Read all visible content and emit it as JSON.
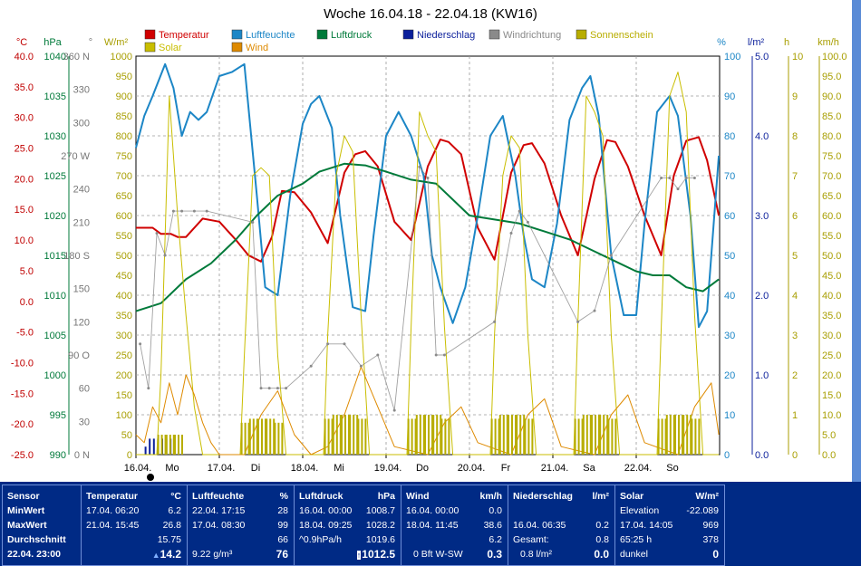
{
  "chart_data": {
    "type": "line",
    "title": "Woche 16.04.18 - 22.04.18 (KW16)",
    "x_range": [
      "16.04. 00:00",
      "22.04. 23:59"
    ],
    "x_ticks": [
      "16.04.",
      "17.04.",
      "18.04.",
      "19.04.",
      "20.04.",
      "21.04.",
      "22.04."
    ],
    "x_day_labels": [
      "Mo",
      "Di",
      "Mi",
      "Do",
      "Fr",
      "Sa",
      "So"
    ],
    "grid": true,
    "legend_position": "top",
    "legend": [
      {
        "name": "Temperatur",
        "color": "#d00000"
      },
      {
        "name": "Luftfeuchte",
        "color": "#1c86c6"
      },
      {
        "name": "Luftdruck",
        "color": "#007a3a"
      },
      {
        "name": "Niederschlag",
        "color": "#0b1f9b"
      },
      {
        "name": "Windrichtung",
        "color": "#8a8a8a"
      },
      {
        "name": "Sonnenschein",
        "color": "#b8ad00"
      },
      {
        "name": "Solar",
        "color": "#c9be00"
      },
      {
        "name": "Wind",
        "color": "#de8a00"
      }
    ],
    "axes": [
      {
        "unit": "°C",
        "color": "#c00000",
        "range": [
          -25,
          40
        ],
        "ticks": [
          "40.0",
          "35.0",
          "30.0",
          "25.0",
          "20.0",
          "15.0",
          "10.0",
          "5.0",
          "0.0",
          "-5.0",
          "-10.0",
          "-15.0",
          "-20.0",
          "-25.0"
        ]
      },
      {
        "unit": "hPa",
        "color": "#007a3a",
        "range": [
          990,
          1040
        ],
        "ticks": [
          "1040",
          "1035",
          "1030",
          "1025",
          "1020",
          "1015",
          "1010",
          "1005",
          "1000",
          "995",
          "990"
        ]
      },
      {
        "unit": "°",
        "color": "#777777",
        "range": [
          0,
          360
        ],
        "ticks": [
          "360 N",
          "330",
          "300",
          "270 W",
          "240",
          "210",
          "180 S",
          "150",
          "120",
          "90 O",
          "60",
          "30",
          "0 N"
        ]
      },
      {
        "unit": "W/m²",
        "color": "#a89e00",
        "range": [
          0,
          1000
        ],
        "ticks": [
          "1000",
          "950",
          "900",
          "850",
          "800",
          "750",
          "700",
          "650",
          "600",
          "550",
          "500",
          "450",
          "400",
          "350",
          "300",
          "250",
          "200",
          "150",
          "100",
          "50",
          "0"
        ]
      },
      {
        "unit": "%",
        "color": "#1c86c6",
        "range": [
          0,
          100
        ],
        "ticks": [
          "100",
          "90",
          "80",
          "70",
          "60",
          "50",
          "40",
          "30",
          "20",
          "10",
          "0"
        ]
      },
      {
        "unit": "l/m²",
        "color": "#0b1f9b",
        "range": [
          0,
          5
        ],
        "ticks": [
          "5.0",
          "4.0",
          "3.0",
          "2.0",
          "1.0",
          "0.0"
        ]
      },
      {
        "unit": "h",
        "color": "#a89e00",
        "range": [
          0,
          10
        ],
        "ticks": [
          "10",
          "9",
          "8",
          "7",
          "6",
          "5",
          "4",
          "3",
          "2",
          "1",
          "0"
        ]
      },
      {
        "unit": "km/h",
        "color": "#a89e00",
        "range": [
          0,
          100
        ],
        "ticks": [
          "100.0",
          "95.0",
          "90.0",
          "85.0",
          "80.0",
          "75.0",
          "70.0",
          "65.0",
          "60.0",
          "55.0",
          "50.0",
          "45.0",
          "40.0",
          "35.0",
          "30.0",
          "25.0",
          "20.0",
          "15.0",
          "10.0",
          "5.0",
          "0.0"
        ]
      }
    ],
    "series": [
      {
        "name": "Temperatur",
        "unit": "°C",
        "x_days": [
          0,
          0.2,
          0.3,
          0.42,
          0.5,
          0.6,
          0.8,
          1.0,
          1.2,
          1.35,
          1.5,
          1.63,
          1.75,
          1.9,
          2.1,
          2.3,
          2.5,
          2.63,
          2.75,
          2.9,
          3.1,
          3.3,
          3.5,
          3.65,
          3.75,
          3.9,
          4.1,
          4.3,
          4.5,
          4.65,
          4.75,
          4.9,
          5.1,
          5.3,
          5.5,
          5.65,
          5.75,
          5.9,
          6.1,
          6.3,
          6.45,
          6.6,
          6.75,
          6.85,
          6.99
        ],
        "values": [
          12,
          12,
          11,
          11,
          10.5,
          10.5,
          13.5,
          13,
          10,
          7.5,
          6.5,
          10.5,
          18,
          17.8,
          14.5,
          9.5,
          21,
          24,
          24.5,
          22,
          13,
          10,
          22,
          26.4,
          26,
          24,
          12,
          6.8,
          21,
          25.5,
          25.8,
          22.5,
          14,
          7.5,
          20,
          26.3,
          26,
          22,
          14,
          7.5,
          20.5,
          26.2,
          26.8,
          23,
          14
        ]
      },
      {
        "name": "Luftfeuchte",
        "unit": "%",
        "x_days": [
          0,
          0.1,
          0.2,
          0.35,
          0.45,
          0.55,
          0.65,
          0.75,
          0.85,
          1.0,
          1.15,
          1.3,
          1.45,
          1.55,
          1.7,
          1.85,
          2.0,
          2.1,
          2.2,
          2.35,
          2.45,
          2.6,
          2.75,
          2.85,
          3.0,
          3.15,
          3.3,
          3.45,
          3.55,
          3.65,
          3.8,
          3.95,
          4.1,
          4.25,
          4.4,
          4.55,
          4.65,
          4.75,
          4.9,
          5.05,
          5.2,
          5.35,
          5.45,
          5.55,
          5.7,
          5.85,
          6.0,
          6.1,
          6.25,
          6.4,
          6.5,
          6.65,
          6.75,
          6.85,
          6.99
        ],
        "values": [
          77,
          85,
          90,
          98,
          92,
          80,
          86,
          84,
          86,
          95,
          96,
          98,
          65,
          42,
          40,
          65,
          83,
          88,
          90,
          82,
          60,
          37,
          36,
          55,
          80,
          86,
          80,
          70,
          50,
          42,
          33,
          42,
          60,
          80,
          85,
          70,
          55,
          44,
          42,
          58,
          84,
          92,
          95,
          85,
          50,
          35,
          35,
          58,
          86,
          90,
          85,
          60,
          32,
          36,
          75
        ]
      },
      {
        "name": "Luftdruck",
        "unit": "hPa",
        "x_days": [
          0,
          0.3,
          0.6,
          0.9,
          1.2,
          1.45,
          1.7,
          2.0,
          2.2,
          2.5,
          2.75,
          3.0,
          3.3,
          3.6,
          3.8,
          4.0,
          4.3,
          4.6,
          4.9,
          5.2,
          5.5,
          5.8,
          6.0,
          6.2,
          6.4,
          6.6,
          6.8,
          6.99
        ],
        "values": [
          1008,
          1009,
          1012,
          1014,
          1017,
          1020,
          1022.5,
          1024,
          1025.5,
          1026.5,
          1026.3,
          1025.5,
          1024.5,
          1024,
          1022,
          1020,
          1019.5,
          1019,
          1018,
          1017,
          1015.5,
          1014,
          1013,
          1012.5,
          1012.5,
          1011,
          1010.5,
          1012
        ]
      },
      {
        "name": "Niederschlag",
        "unit": "l/m²",
        "x_days": [
          0.05,
          0.1,
          0.15,
          0.2,
          0.25,
          0.3,
          0.35,
          0.4
        ],
        "values": [
          0.1,
          0.2,
          0.2,
          0.2,
          0.2,
          0.2,
          0.2,
          0.2
        ]
      },
      {
        "name": "Solar",
        "unit": "W/m²",
        "x_days": [
          0,
          0.25,
          0.3,
          0.4,
          0.5,
          0.6,
          0.7,
          0.8,
          1.25,
          1.3,
          1.4,
          1.5,
          1.6,
          1.7,
          1.8,
          2.25,
          2.3,
          2.4,
          2.5,
          2.6,
          2.7,
          2.8,
          3.25,
          3.3,
          3.4,
          3.5,
          3.6,
          3.7,
          3.8,
          4.25,
          4.3,
          4.4,
          4.5,
          4.6,
          4.7,
          4.8,
          5.25,
          5.3,
          5.4,
          5.5,
          5.6,
          5.7,
          5.8,
          6.25,
          6.3,
          6.4,
          6.5,
          6.6,
          6.7,
          6.8,
          6.99
        ],
        "values": [
          0,
          0,
          200,
          900,
          600,
          350,
          120,
          0,
          0,
          250,
          700,
          720,
          700,
          250,
          0,
          0,
          300,
          700,
          800,
          760,
          350,
          0,
          0,
          320,
          860,
          800,
          760,
          320,
          0,
          0,
          300,
          700,
          800,
          770,
          300,
          0,
          0,
          330,
          900,
          860,
          800,
          300,
          0,
          0,
          320,
          900,
          960,
          860,
          350,
          0,
          0
        ]
      },
      {
        "name": "Wind",
        "unit": "km/h",
        "x_days": [
          0,
          0.1,
          0.2,
          0.3,
          0.4,
          0.5,
          0.6,
          0.7,
          0.8,
          0.9,
          1.0,
          1.3,
          1.5,
          1.7,
          1.9,
          2.1,
          2.3,
          2.5,
          2.7,
          2.9,
          3.1,
          3.5,
          3.7,
          3.9,
          4.1,
          4.5,
          4.7,
          4.9,
          5.1,
          5.5,
          5.7,
          5.9,
          6.1,
          6.5,
          6.7,
          6.9,
          6.99
        ],
        "values": [
          5,
          3,
          12,
          8,
          18,
          10,
          20,
          15,
          8,
          3,
          0,
          0,
          10,
          16,
          5,
          0,
          2,
          10,
          22,
          12,
          2,
          0,
          8,
          12,
          3,
          0,
          10,
          14,
          2,
          0,
          10,
          15,
          3,
          0,
          12,
          18,
          5
        ]
      },
      {
        "name": "Windrichtung",
        "unit": "°",
        "x_days": [
          0.05,
          0.15,
          0.25,
          0.35,
          0.45,
          0.55,
          0.7,
          0.85,
          1.4,
          1.5,
          1.6,
          1.7,
          1.8,
          2.1,
          2.3,
          2.5,
          2.7,
          2.9,
          3.1,
          3.4,
          3.5,
          3.6,
          3.7,
          4.3,
          4.5,
          4.6,
          4.7,
          5.3,
          5.5,
          5.7,
          6.3,
          6.4,
          6.5,
          6.6,
          6.7
        ],
        "values": [
          100,
          60,
          200,
          180,
          220,
          220,
          220,
          220,
          210,
          60,
          60,
          60,
          60,
          80,
          100,
          100,
          80,
          90,
          40,
          260,
          250,
          90,
          90,
          120,
          200,
          220,
          210,
          120,
          130,
          180,
          250,
          250,
          240,
          250,
          250
        ]
      },
      {
        "name": "Sonnenschein",
        "unit": "h",
        "x_days": [
          0.3,
          0.4,
          0.5,
          1.3,
          1.4,
          1.5,
          1.6,
          1.7,
          2.3,
          2.4,
          2.5,
          2.6,
          2.7,
          3.3,
          3.4,
          3.5,
          3.6,
          3.7,
          4.3,
          4.4,
          4.5,
          4.6,
          4.7,
          5.3,
          5.4,
          5.5,
          5.6,
          5.7,
          6.3,
          6.4,
          6.5,
          6.6,
          6.7
        ],
        "values": [
          0.5,
          0.5,
          0.5,
          0.8,
          0.9,
          0.9,
          0.9,
          0.8,
          0.9,
          1.0,
          1.0,
          1.0,
          0.9,
          0.9,
          1.0,
          1.0,
          1.0,
          0.9,
          0.9,
          1.0,
          1.0,
          1.0,
          0.9,
          0.9,
          1.0,
          1.0,
          1.0,
          0.9,
          0.9,
          1.0,
          1.0,
          1.0,
          0.9
        ]
      }
    ]
  },
  "stats": {
    "sensor": {
      "header": "Sensor",
      "rows": [
        "MinWert",
        "MaxWert",
        "Durchschnitt",
        "22.04. 23:00"
      ]
    },
    "temperatur": {
      "header": "Temperatur",
      "unit": "°C",
      "min_time": "17.04. 06:20",
      "min": "6.2",
      "max_time": "21.04. 15:45",
      "max": "26.8",
      "avg": "15.75",
      "current": "14.2"
    },
    "luftfeuchte": {
      "header": "Luftfeuchte",
      "unit": "%",
      "min_time": "22.04. 17:15",
      "min": "28",
      "max_time": "17.04. 08:30",
      "max": "99",
      "avg": "66",
      "extra": "9.22 g/m³",
      "current": "76"
    },
    "luftdruck": {
      "header": "Luftdruck",
      "unit": "hPa",
      "min_time": "16.04. 00:00",
      "min": "1008.7",
      "max_time": "18.04. 09:25",
      "max": "1028.2",
      "trend": "^0.9hPa/h",
      "avg": "1019.6",
      "current": "1012.5"
    },
    "wind": {
      "header": "Wind",
      "unit": "km/h",
      "min_time": "16.04. 00:00",
      "min": "0.0",
      "max_time": "18.04. 11:45",
      "max": "38.6",
      "avg": "6.2",
      "dir": "0 Bft W-SW",
      "current": "0.3"
    },
    "niederschlag": {
      "header": "Niederschlag",
      "unit": "l/m²",
      "max_time": "16.04. 06:35",
      "max": "0.2",
      "gesamt_label": "Gesamt:",
      "gesamt": "0.8",
      "extra": "0.8 l/m²",
      "current": "0.0"
    },
    "solar": {
      "header": "Solar",
      "unit": "W/m²",
      "elev_label": "Elevation",
      "elev": "-22.089",
      "max_time": "17.04. 14:05",
      "max": "969",
      "sun": "65:25 h",
      "sun_val": "378",
      "dark": "dunkel",
      "current": "0"
    }
  }
}
